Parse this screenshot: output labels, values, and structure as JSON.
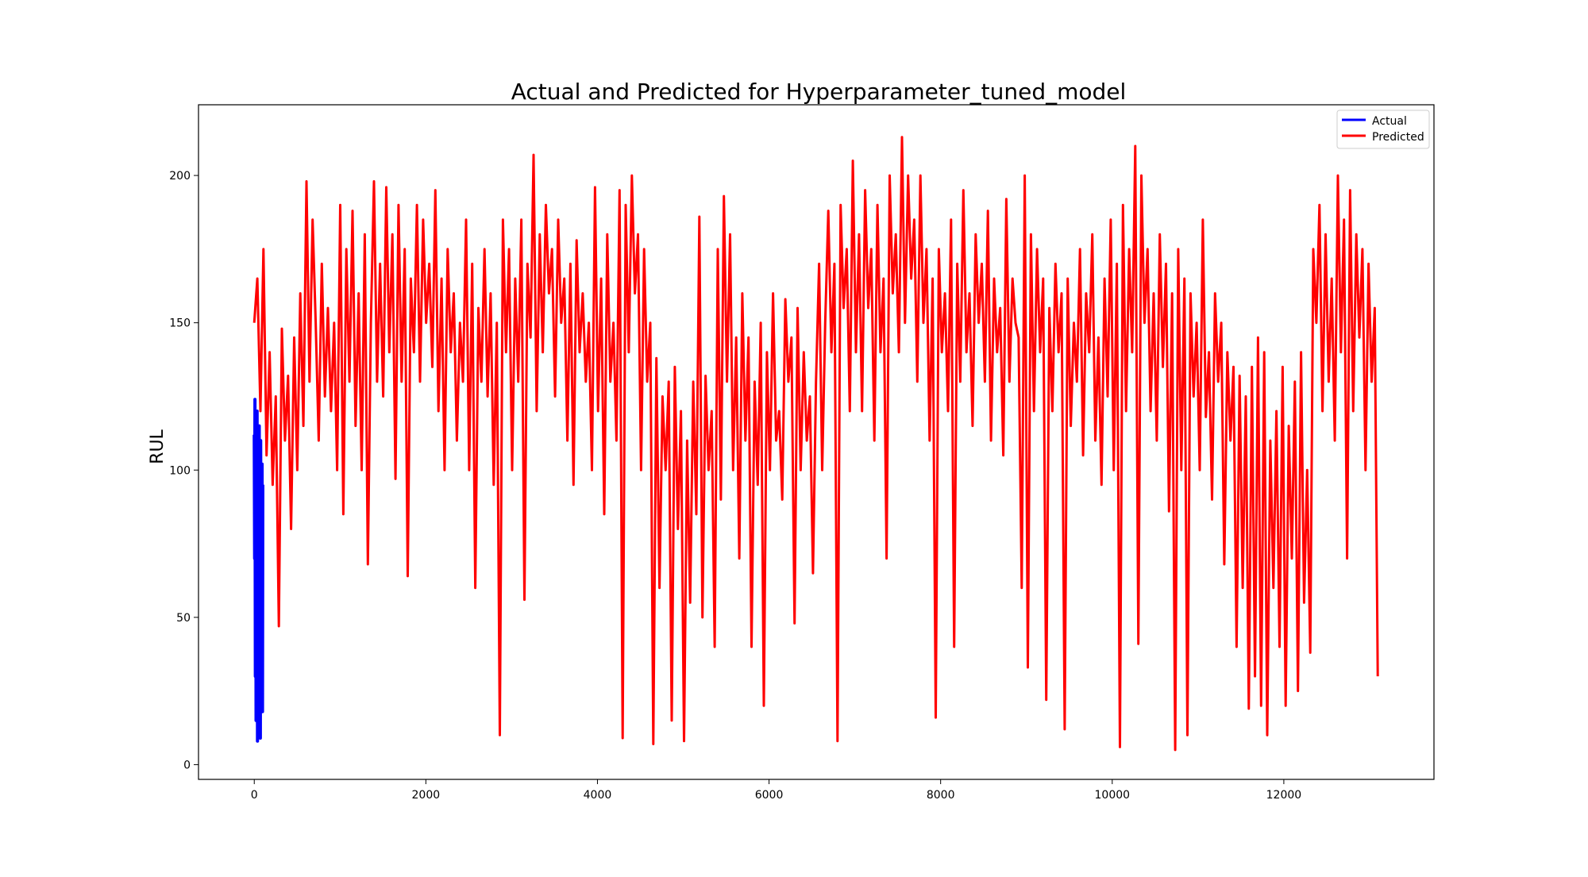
{
  "colors": {
    "actual": "#0000ff",
    "predicted": "#ff0000",
    "axes": "#000000",
    "background": "#ffffff"
  },
  "chart_data": {
    "type": "line",
    "title": "Actual and Predicted for Hyperparameter_tuned_model",
    "xlabel": "",
    "ylabel": "RUL",
    "xlim": [
      -650,
      13750
    ],
    "ylim": [
      -5,
      224
    ],
    "xticks": [
      0,
      2000,
      4000,
      6000,
      8000,
      10000,
      12000
    ],
    "xtick_labels": [
      "0",
      "2000",
      "4000",
      "6000",
      "8000",
      "10000",
      "12000"
    ],
    "yticks": [
      0,
      50,
      100,
      150,
      200
    ],
    "ytick_labels": [
      "0",
      "50",
      "100",
      "150",
      "200"
    ],
    "grid": false,
    "legend_position": "top-right",
    "series": [
      {
        "name": "Actual",
        "color": "#0000ff",
        "x_range": [
          0,
          100
        ],
        "values": [
          112,
          70,
          124,
          30,
          118,
          15,
          108,
          22,
          120,
          8,
          104,
          25,
          96,
          12,
          115,
          35,
          90,
          9,
          110,
          40,
          85,
          20,
          102,
          18,
          95
        ]
      },
      {
        "name": "Predicted",
        "color": "#ff0000",
        "x_range": [
          0,
          13095
        ],
        "values": [
          150,
          165,
          120,
          175,
          105,
          140,
          95,
          125,
          47,
          148,
          110,
          132,
          80,
          145,
          100,
          160,
          115,
          198,
          130,
          185,
          150,
          110,
          170,
          125,
          155,
          120,
          150,
          100,
          190,
          85,
          175,
          130,
          188,
          115,
          160,
          100,
          180,
          68,
          150,
          198,
          130,
          170,
          125,
          196,
          140,
          180,
          97,
          190,
          130,
          175,
          64,
          165,
          140,
          190,
          130,
          185,
          150,
          170,
          135,
          195,
          120,
          165,
          100,
          175,
          140,
          160,
          110,
          150,
          130,
          185,
          100,
          170,
          60,
          155,
          130,
          175,
          125,
          160,
          95,
          150,
          10,
          185,
          140,
          175,
          100,
          165,
          130,
          185,
          56,
          170,
          145,
          207,
          120,
          180,
          140,
          190,
          160,
          175,
          125,
          185,
          150,
          165,
          110,
          170,
          95,
          178,
          140,
          160,
          130,
          150,
          100,
          196,
          120,
          165,
          85,
          180,
          130,
          150,
          110,
          195,
          9,
          190,
          140,
          200,
          160,
          180,
          100,
          175,
          130,
          150,
          7,
          138,
          60,
          125,
          100,
          130,
          15,
          135,
          80,
          120,
          8,
          110,
          55,
          130,
          85,
          186,
          50,
          132,
          100,
          120,
          40,
          175,
          90,
          193,
          130,
          180,
          100,
          145,
          70,
          160,
          110,
          145,
          40,
          130,
          95,
          150,
          20,
          140,
          100,
          160,
          110,
          120,
          90,
          158,
          130,
          145,
          48,
          155,
          100,
          140,
          110,
          125,
          65,
          130,
          170,
          100,
          150,
          188,
          140,
          170,
          8,
          190,
          155,
          175,
          120,
          205,
          140,
          180,
          120,
          195,
          155,
          175,
          110,
          190,
          140,
          165,
          70,
          200,
          160,
          180,
          140,
          213,
          150,
          200,
          165,
          185,
          130,
          200,
          150,
          175,
          110,
          165,
          16,
          175,
          140,
          160,
          120,
          185,
          40,
          170,
          130,
          195,
          140,
          160,
          115,
          180,
          150,
          170,
          130,
          188,
          110,
          165,
          140,
          155,
          105,
          192,
          130,
          165,
          150,
          145,
          60,
          200,
          33,
          180,
          120,
          175,
          140,
          165,
          22,
          155,
          120,
          170,
          140,
          160,
          12,
          165,
          115,
          150,
          130,
          175,
          105,
          160,
          140,
          180,
          110,
          145,
          95,
          165,
          125,
          185,
          100,
          170,
          6,
          190,
          120,
          175,
          140,
          210,
          41,
          200,
          150,
          175,
          120,
          160,
          110,
          180,
          135,
          170,
          86,
          160,
          5,
          175,
          100,
          165,
          10,
          160,
          125,
          150,
          100,
          185,
          118,
          140,
          90,
          160,
          130,
          150,
          68,
          140,
          110,
          135,
          40,
          132,
          60,
          125,
          19,
          135,
          30,
          145,
          20,
          140,
          10,
          110,
          60,
          120,
          40,
          135,
          20,
          115,
          70,
          130,
          25,
          140,
          55,
          100,
          38,
          175,
          150,
          190,
          120,
          180,
          130,
          165,
          110,
          200,
          140,
          185,
          70,
          195,
          120,
          180,
          145,
          175,
          100,
          170,
          130,
          155,
          30
        ]
      }
    ]
  }
}
